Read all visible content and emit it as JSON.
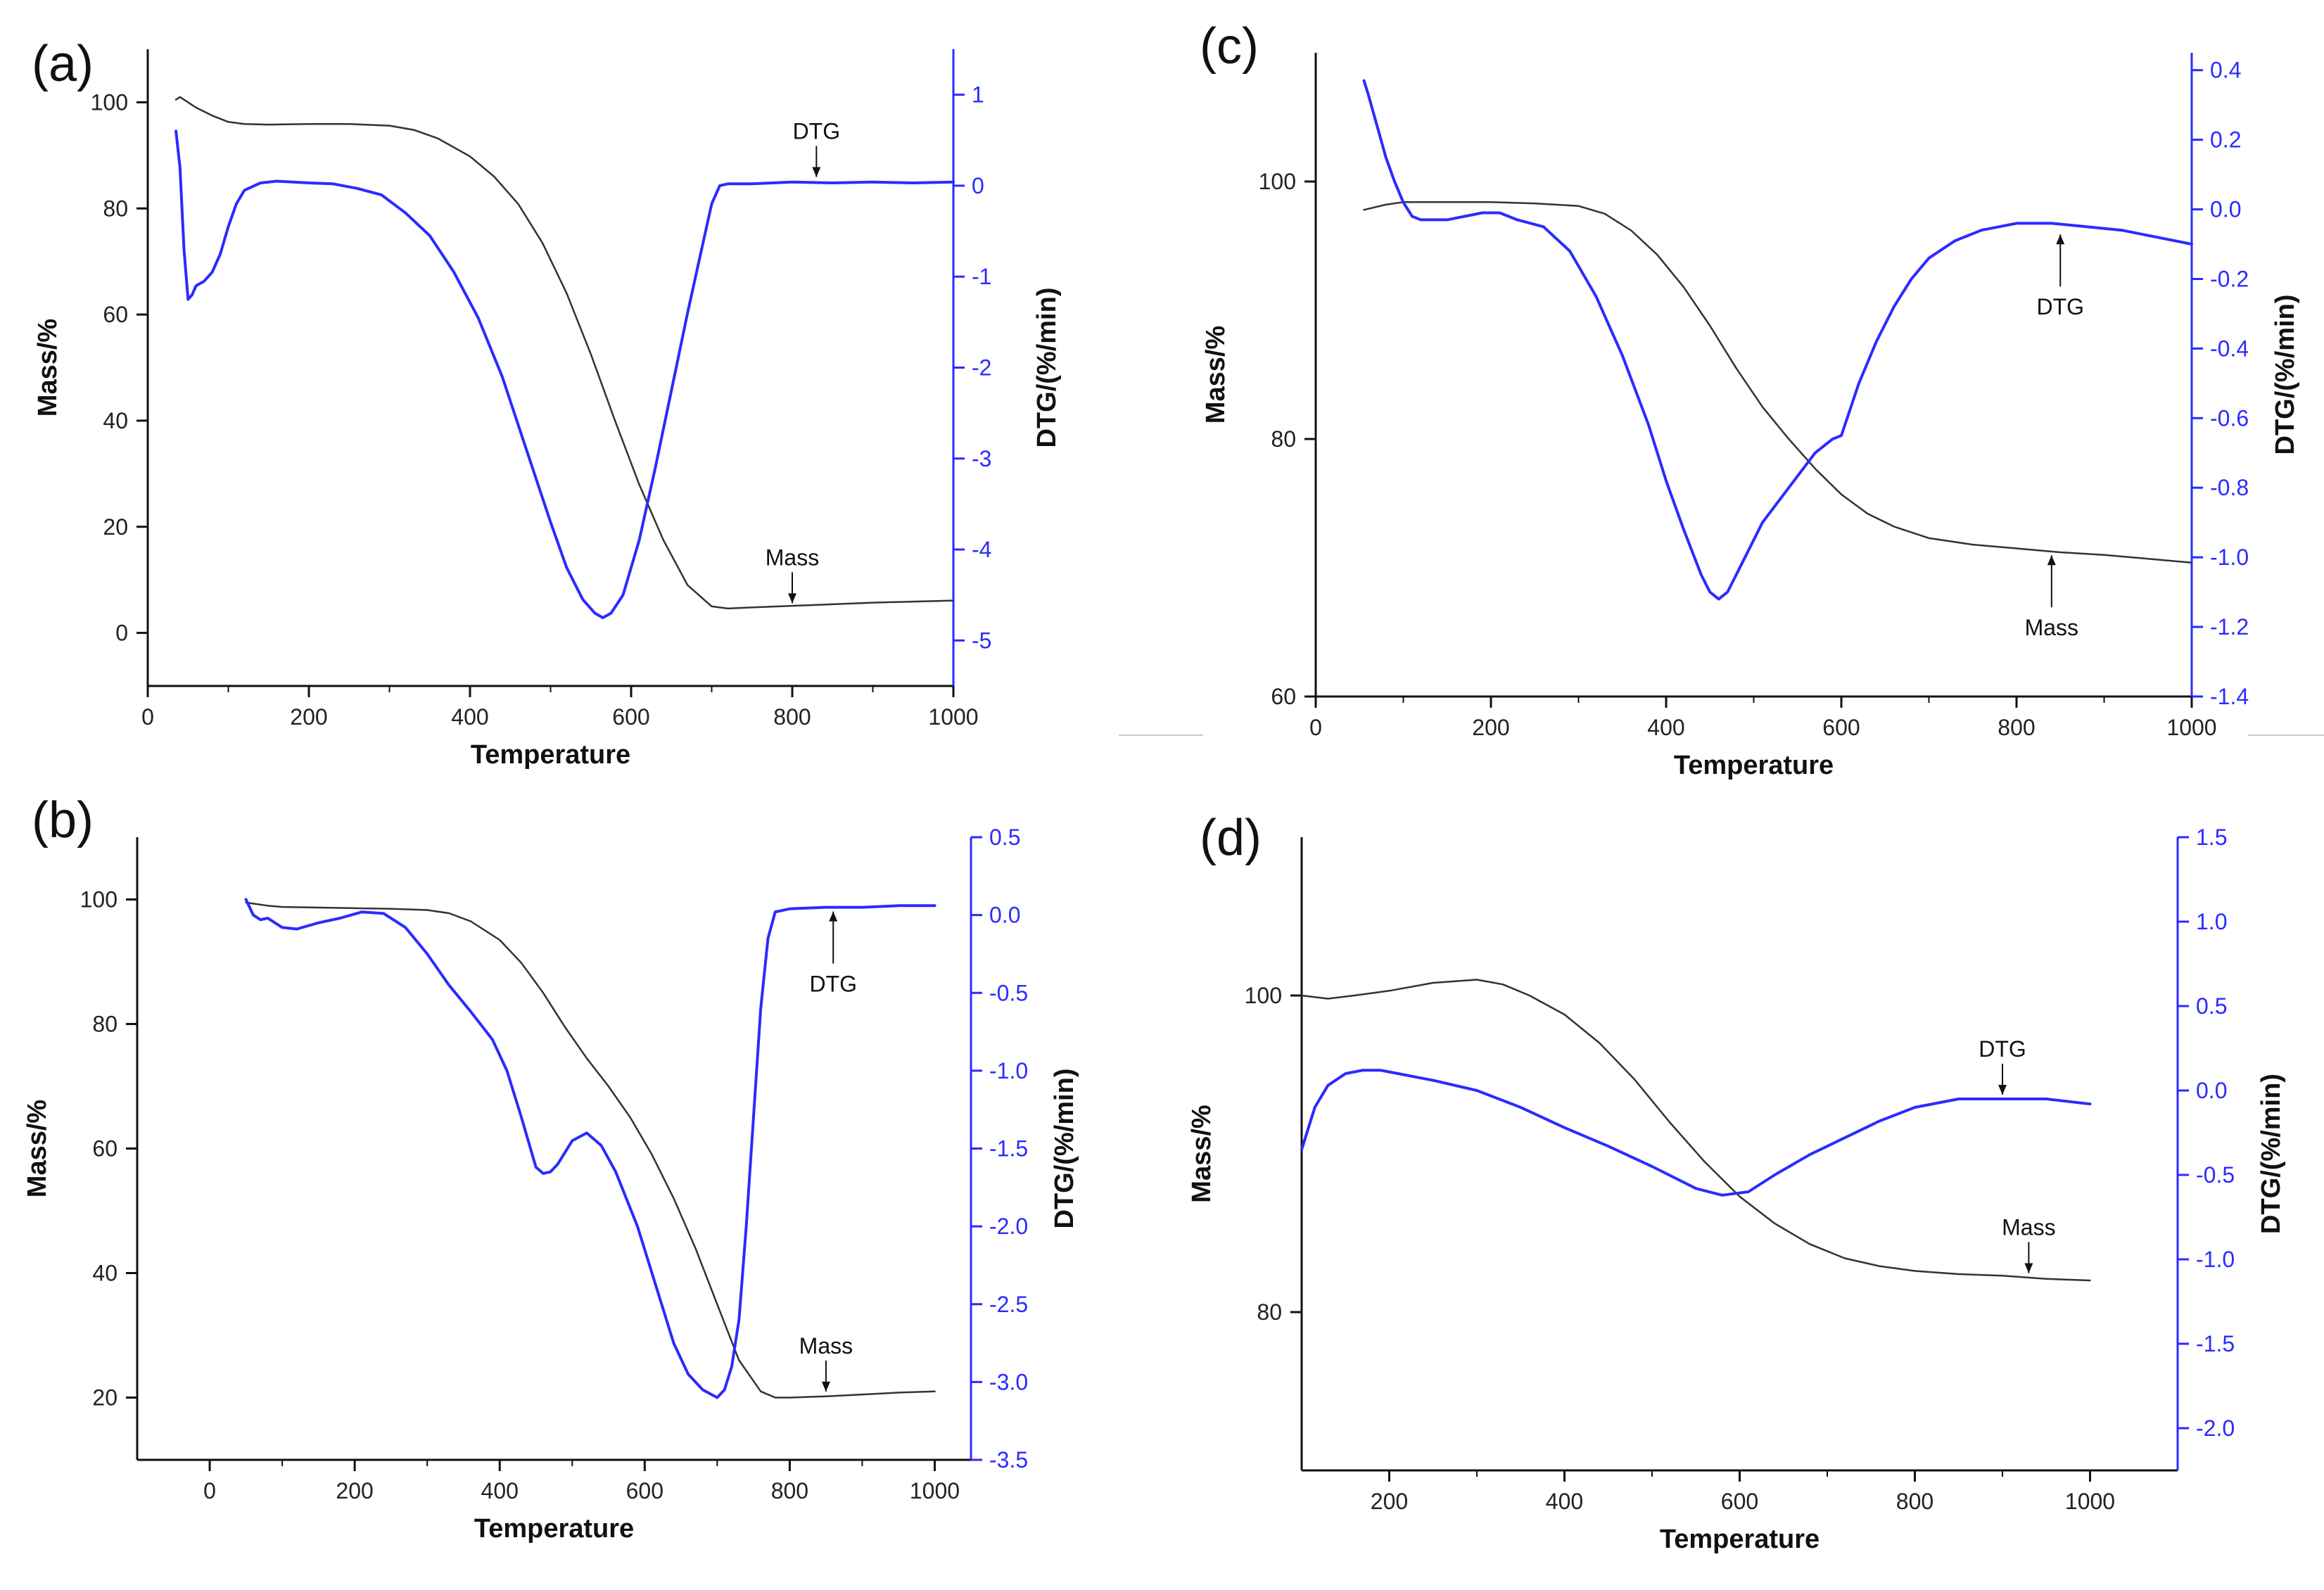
{
  "figure": {
    "colors": {
      "mass": "#333333",
      "dtg": "#2b2bff",
      "axis": "#111111",
      "arrow": "#111111"
    }
  },
  "chart_data": [
    {
      "label": "(a)",
      "type": "line",
      "xlabel": "Temperature",
      "ylabel": "Mass/%",
      "y2label": "DTG/(%/min)",
      "xlim": [
        0,
        1000
      ],
      "ylim": [
        -10,
        110
      ],
      "y2lim": [
        -5.5,
        1.5
      ],
      "xticks": [
        0,
        200,
        400,
        600,
        800,
        1000
      ],
      "yticks": [
        0,
        20,
        40,
        60,
        80,
        100
      ],
      "y2ticks": [
        -5,
        -4,
        -3,
        -2,
        -1,
        0,
        1
      ],
      "annotations": [
        {
          "text": "DTG",
          "series": "DTG",
          "x": 830,
          "y": 0.05
        },
        {
          "text": "Mass",
          "series": "Mass",
          "x": 800,
          "y": 4.8
        }
      ],
      "series": [
        {
          "name": "Mass",
          "axis": "left",
          "x": [
            35,
            40,
            50,
            60,
            80,
            100,
            120,
            150,
            200,
            250,
            300,
            330,
            360,
            400,
            430,
            460,
            490,
            520,
            550,
            580,
            610,
            640,
            670,
            700,
            720,
            750,
            800,
            850,
            900,
            950,
            1000
          ],
          "y": [
            100.5,
            101,
            100,
            99,
            97.5,
            96.3,
            95.9,
            95.8,
            95.9,
            95.9,
            95.6,
            94.8,
            93.2,
            89.8,
            86,
            80.8,
            73.5,
            64,
            52.5,
            40,
            28,
            17.5,
            9,
            5,
            4.6,
            4.8,
            5.1,
            5.4,
            5.7,
            5.9,
            6.1
          ]
        },
        {
          "name": "DTG",
          "axis": "right",
          "x": [
            35,
            40,
            45,
            50,
            55,
            60,
            70,
            80,
            90,
            100,
            110,
            120,
            140,
            160,
            180,
            200,
            230,
            260,
            290,
            320,
            350,
            380,
            410,
            440,
            470,
            500,
            520,
            540,
            555,
            565,
            575,
            590,
            610,
            630,
            650,
            670,
            690,
            700,
            710,
            720,
            750,
            800,
            850,
            900,
            950,
            1000
          ],
          "y": [
            0.6,
            0.2,
            -0.7,
            -1.25,
            -1.2,
            -1.1,
            -1.05,
            -0.95,
            -0.75,
            -0.45,
            -0.2,
            -0.05,
            0.03,
            0.05,
            0.04,
            0.03,
            0.02,
            -0.03,
            -0.1,
            -0.3,
            -0.55,
            -0.95,
            -1.45,
            -2.1,
            -2.9,
            -3.7,
            -4.2,
            -4.55,
            -4.7,
            -4.75,
            -4.7,
            -4.5,
            -3.9,
            -3.1,
            -2.25,
            -1.4,
            -0.6,
            -0.2,
            0,
            0.02,
            0.02,
            0.04,
            0.03,
            0.04,
            0.03,
            0.04
          ]
        }
      ]
    },
    {
      "label": "(b)",
      "type": "line",
      "xlabel": "Temperature",
      "ylabel": "Mass/%",
      "y2label": "DTG/(%/min)",
      "xlim": [
        -100,
        1050
      ],
      "ylim": [
        10,
        110
      ],
      "y2lim": [
        -3.5,
        0.5
      ],
      "xticks": [
        0,
        200,
        400,
        600,
        800,
        1000
      ],
      "yticks": [
        20,
        40,
        60,
        80,
        100
      ],
      "y2ticks": [
        -3.5,
        -3.0,
        -2.5,
        -2.0,
        -1.5,
        -1.0,
        -0.5,
        0.0,
        0.5
      ],
      "y2ticklabels": [
        "-3.5",
        "-3.0",
        "-2.5",
        "-2.0",
        "-1.5",
        "-1.0",
        "-0.5",
        "0.0",
        "0.5"
      ],
      "annotations": [
        {
          "text": "DTG",
          "series": "DTG",
          "x": 860,
          "y": 0.05
        },
        {
          "text": "Mass",
          "series": "Mass",
          "x": 850,
          "y": 20.3
        }
      ],
      "series": [
        {
          "name": "Mass",
          "axis": "left",
          "x": [
            50,
            80,
            100,
            150,
            200,
            250,
            300,
            330,
            360,
            400,
            430,
            460,
            490,
            520,
            550,
            580,
            610,
            640,
            670,
            700,
            730,
            760,
            780,
            800,
            850,
            900,
            950,
            1000
          ],
          "y": [
            99.5,
            99,
            98.8,
            98.7,
            98.6,
            98.5,
            98.3,
            97.8,
            96.5,
            93.5,
            89.8,
            85,
            79.5,
            74.5,
            70,
            65,
            59,
            52,
            44,
            35,
            26,
            21,
            20,
            20,
            20.2,
            20.5,
            20.8,
            21
          ]
        },
        {
          "name": "DTG",
          "axis": "right",
          "x": [
            50,
            60,
            70,
            80,
            100,
            120,
            150,
            180,
            210,
            240,
            270,
            300,
            330,
            360,
            390,
            410,
            430,
            450,
            460,
            470,
            480,
            500,
            520,
            540,
            560,
            590,
            620,
            640,
            660,
            680,
            700,
            710,
            720,
            730,
            740,
            750,
            760,
            770,
            780,
            800,
            850,
            900,
            950,
            1000
          ],
          "y": [
            0.1,
            0,
            -0.03,
            -0.02,
            -0.08,
            -0.09,
            -0.05,
            -0.02,
            0.02,
            0.01,
            -0.08,
            -0.25,
            -0.45,
            -0.62,
            -0.8,
            -1.0,
            -1.3,
            -1.62,
            -1.66,
            -1.65,
            -1.6,
            -1.45,
            -1.4,
            -1.48,
            -1.65,
            -2.0,
            -2.45,
            -2.75,
            -2.95,
            -3.05,
            -3.1,
            -3.05,
            -2.9,
            -2.6,
            -2.0,
            -1.3,
            -0.6,
            -0.15,
            0.02,
            0.04,
            0.05,
            0.05,
            0.06,
            0.06
          ]
        }
      ]
    },
    {
      "label": "(c)",
      "type": "line",
      "xlabel": "Temperature",
      "ylabel": "Mass/%",
      "y2label": "DTG/(%/min)",
      "xlim": [
        0,
        1000
      ],
      "ylim": [
        60,
        110
      ],
      "y2lim": [
        -1.4,
        0.45
      ],
      "xticks": [
        0,
        200,
        400,
        600,
        800,
        1000
      ],
      "yticks": [
        60,
        80,
        100
      ],
      "y2ticks": [
        -1.4,
        -1.2,
        -1.0,
        -0.8,
        -0.6,
        -0.4,
        -0.2,
        0.0,
        0.2,
        0.4
      ],
      "y2ticklabels": [
        "-1.4",
        "-1.2",
        "-1.0",
        "-0.8",
        "-0.6",
        "-0.4",
        "-0.2",
        "0.0",
        "0.2",
        "0.4"
      ],
      "annotations": [
        {
          "text": "DTG",
          "series": "DTG",
          "x": 850,
          "y": -0.06
        },
        {
          "text": "Mass",
          "series": "Mass",
          "x": 840,
          "y": 71.3
        }
      ],
      "series": [
        {
          "name": "Mass",
          "axis": "left",
          "x": [
            55,
            80,
            100,
            150,
            200,
            250,
            300,
            330,
            360,
            390,
            420,
            450,
            480,
            510,
            540,
            570,
            600,
            630,
            660,
            700,
            750,
            800,
            850,
            900,
            950,
            1000
          ],
          "y": [
            97.8,
            98.2,
            98.4,
            98.4,
            98.4,
            98.3,
            98.1,
            97.5,
            96.2,
            94.3,
            91.8,
            88.8,
            85.5,
            82.5,
            80,
            77.7,
            75.7,
            74.2,
            73.2,
            72.3,
            71.8,
            71.5,
            71.2,
            71,
            70.7,
            70.4
          ]
        },
        {
          "name": "DTG",
          "axis": "right",
          "x": [
            55,
            60,
            70,
            80,
            90,
            100,
            110,
            120,
            130,
            150,
            170,
            190,
            210,
            230,
            260,
            290,
            320,
            350,
            380,
            400,
            420,
            440,
            450,
            460,
            470,
            490,
            510,
            540,
            570,
            590,
            600,
            620,
            640,
            660,
            680,
            700,
            730,
            760,
            800,
            840,
            880,
            920,
            960,
            1000
          ],
          "y": [
            0.37,
            0.33,
            0.24,
            0.15,
            0.08,
            0.02,
            -0.02,
            -0.03,
            -0.03,
            -0.03,
            -0.02,
            -0.01,
            -0.01,
            -0.03,
            -0.05,
            -0.12,
            -0.25,
            -0.42,
            -0.62,
            -0.78,
            -0.92,
            -1.05,
            -1.1,
            -1.12,
            -1.1,
            -1.0,
            -0.9,
            -0.8,
            -0.7,
            -0.66,
            -0.65,
            -0.5,
            -0.38,
            -0.28,
            -0.2,
            -0.14,
            -0.09,
            -0.06,
            -0.04,
            -0.04,
            -0.05,
            -0.06,
            -0.08,
            -0.1
          ]
        }
      ]
    },
    {
      "label": "(d)",
      "type": "line",
      "xlabel": "Temperature",
      "ylabel": "Mass/%",
      "y2label": "DTG/(%/min)",
      "xlim": [
        100,
        1100
      ],
      "ylim": [
        70,
        110
      ],
      "y2lim": [
        -2.25,
        1.5
      ],
      "xticks": [
        200,
        400,
        600,
        800,
        1000
      ],
      "yticks": [
        80,
        100
      ],
      "y2ticks": [
        -2.0,
        -1.5,
        -1.0,
        -0.5,
        0.0,
        0.5,
        1.0,
        1.5
      ],
      "y2ticklabels": [
        "-2.0",
        "-1.5",
        "-1.0",
        "-0.5",
        "0.0",
        "0.5",
        "1.0",
        "1.5"
      ],
      "annotations": [
        {
          "text": "DTG",
          "series": "DTG",
          "x": 900,
          "y": -0.05
        },
        {
          "text": "Mass",
          "series": "Mass",
          "x": 930,
          "y": 82.2
        }
      ],
      "series": [
        {
          "name": "Mass",
          "axis": "left",
          "x": [
            100,
            130,
            160,
            200,
            250,
            300,
            330,
            360,
            400,
            440,
            480,
            520,
            560,
            600,
            640,
            680,
            720,
            760,
            800,
            850,
            900,
            950,
            1000
          ],
          "y": [
            100,
            99.8,
            100,
            100.3,
            100.8,
            101,
            100.7,
            100,
            98.8,
            97,
            94.7,
            92,
            89.5,
            87.3,
            85.6,
            84.3,
            83.4,
            82.9,
            82.6,
            82.4,
            82.3,
            82.1,
            82
          ]
        },
        {
          "name": "DTG",
          "axis": "right",
          "x": [
            100,
            115,
            130,
            150,
            170,
            190,
            210,
            250,
            300,
            350,
            400,
            450,
            500,
            550,
            580,
            610,
            640,
            680,
            720,
            760,
            800,
            850,
            900,
            950,
            1000
          ],
          "y": [
            -0.35,
            -0.1,
            0.03,
            0.1,
            0.12,
            0.12,
            0.1,
            0.06,
            0.0,
            -0.1,
            -0.22,
            -0.33,
            -0.45,
            -0.58,
            -0.62,
            -0.6,
            -0.5,
            -0.38,
            -0.28,
            -0.18,
            -0.1,
            -0.05,
            -0.05,
            -0.05,
            -0.08
          ]
        }
      ]
    }
  ]
}
